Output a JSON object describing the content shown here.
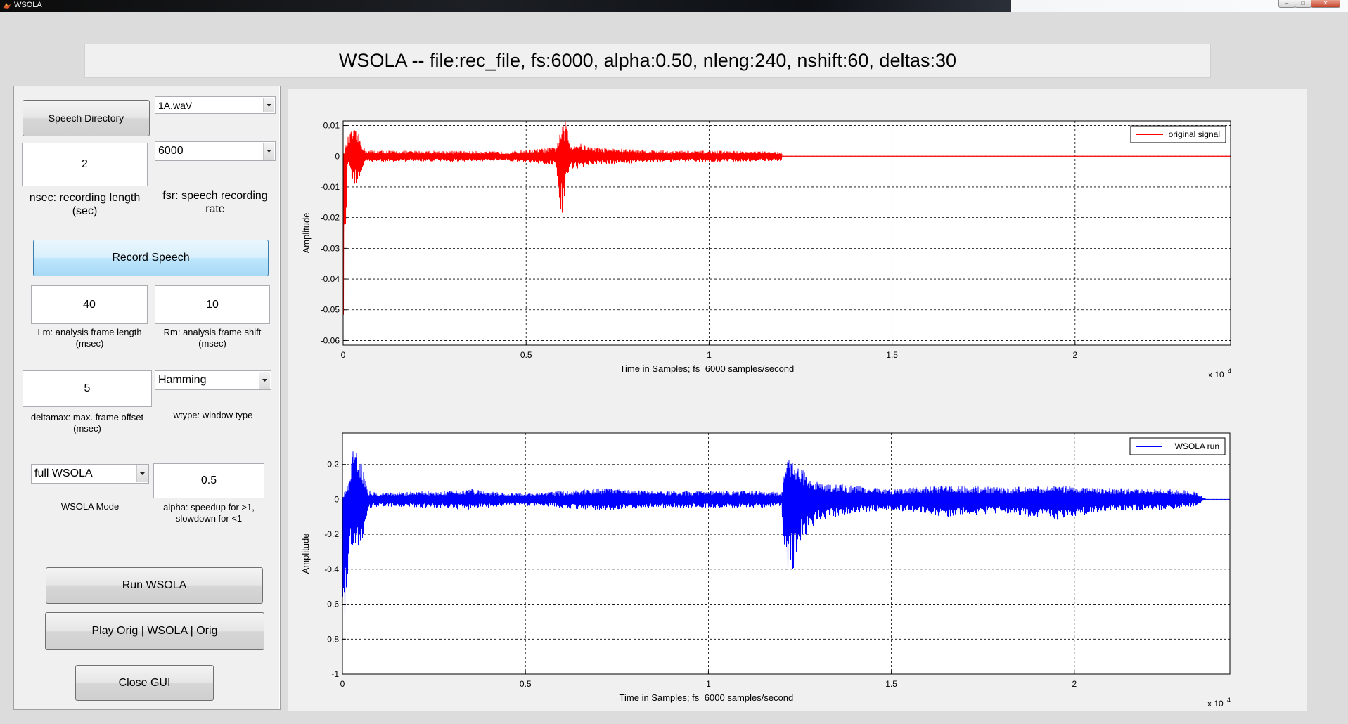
{
  "window": {
    "title": "WSOLA"
  },
  "header": {
    "title": "WSOLA -- file:rec_file, fs:6000, alpha:0.50, nleng:240, nshift:60, deltas:30"
  },
  "controls": {
    "speech_directory_label": "Speech Directory",
    "file_select": "1A.waV",
    "nsec_value": "2",
    "nsec_label": "nsec: recording length (sec)",
    "fsr_select": "6000",
    "fsr_label": "fsr: speech recording rate",
    "record_label": "Record Speech",
    "lm_value": "40",
    "lm_label": "Lm: analysis frame length (msec)",
    "rm_value": "10",
    "rm_label": "Rm: analysis frame shift (msec)",
    "deltamax_value": "5",
    "deltamax_label": "deltamax: max. frame offset (msec)",
    "wtype_select": "Hamming",
    "wtype_label": "wtype: window type",
    "mode_select": "full WSOLA",
    "mode_label": "WSOLA Mode",
    "alpha_value": "0.5",
    "alpha_label": "alpha: speedup for >1, slowdown for <1",
    "run_label": "Run WSOLA",
    "play_label": "Play Orig | WSOLA | Orig",
    "close_label": "Close GUI"
  },
  "icons": {
    "app": "matlab-icon",
    "dropdown": "chevron-down-icon"
  },
  "chart_data": [
    {
      "type": "line",
      "xlabel": "Time in Samples; fs=6000 samples/second",
      "ylabel": "Amplitude",
      "xlim": [
        0,
        24250
      ],
      "ylim": [
        -0.0615,
        0.0115
      ],
      "xticks": [
        0,
        5000,
        10000,
        15000,
        20000
      ],
      "xtick_labels": [
        "0",
        "0.5",
        "1",
        "1.5",
        "2"
      ],
      "x_exponent_label": "x 10",
      "x_exponent_power": "4",
      "yticks": [
        0.01,
        0,
        -0.01,
        -0.02,
        -0.03,
        -0.04,
        -0.05,
        -0.06
      ],
      "ytick_labels": [
        "0.01",
        "0",
        "-0.01",
        "-0.02",
        "-0.03",
        "-0.04",
        "-0.05",
        "-0.06"
      ],
      "grid": true,
      "legend_position": "top-right",
      "series": [
        {
          "name": "original signal",
          "color": "#ff0000",
          "envelope": {
            "x": [
              0,
              120,
              250,
              400,
              600,
              1500,
              3000,
              4500,
              5800,
              6000,
              6100,
              6200,
              6400,
              6800,
              7500,
              9000,
              10500,
              12000
            ],
            "upper": [
              0.0,
              0.006,
              0.009,
              0.008,
              0.002,
              0.0018,
              0.0018,
              0.0015,
              0.003,
              0.01,
              0.012,
              0.004,
              0.0045,
              0.003,
              0.0025,
              0.0018,
              0.0018,
              0.0015
            ],
            "lower": [
              -0.0615,
              -0.0025,
              -0.009,
              -0.0095,
              -0.002,
              -0.0018,
              -0.0018,
              -0.0015,
              -0.003,
              -0.023,
              -0.007,
              -0.004,
              -0.0045,
              -0.003,
              -0.0025,
              -0.0018,
              -0.0018,
              -0.0015
            ]
          }
        }
      ]
    },
    {
      "type": "line",
      "xlabel": "Time in Samples; fs=6000 samples/second",
      "ylabel": "Amplitude",
      "xlim": [
        0,
        24250
      ],
      "ylim": [
        -1.0,
        0.38
      ],
      "xticks": [
        0,
        5000,
        10000,
        15000,
        20000
      ],
      "xtick_labels": [
        "0",
        "0.5",
        "1",
        "1.5",
        "2"
      ],
      "x_exponent_label": "x 10",
      "x_exponent_power": "4",
      "yticks": [
        0.2,
        0,
        -0.2,
        -0.4,
        -0.6,
        -0.8,
        -1
      ],
      "ytick_labels": [
        "0.2",
        "0",
        "-0.2",
        "-0.4",
        "-0.6",
        "-0.8",
        "-1"
      ],
      "grid": true,
      "legend_position": "top-right",
      "series": [
        {
          "name": "WSOLA run",
          "color": "#0000ff",
          "envelope": {
            "x": [
              0,
              200,
              300,
              400,
              550,
              700,
              1000,
              2000,
              3500,
              4500,
              5500,
              7000,
              8500,
              10000,
              11500,
              12000,
              12100,
              12300,
              12500,
              13000,
              13500,
              14000,
              15000,
              16500,
              18000,
              19500,
              21000,
              22500,
              23300,
              23600,
              24250
            ],
            "upper": [
              0.0,
              0.15,
              0.38,
              0.3,
              0.2,
              0.05,
              0.04,
              0.045,
              0.06,
              0.035,
              0.04,
              0.065,
              0.05,
              0.05,
              0.05,
              0.04,
              0.2,
              0.25,
              0.18,
              0.1,
              0.09,
              0.08,
              0.06,
              0.08,
              0.07,
              0.08,
              0.065,
              0.06,
              0.05,
              0.0,
              0.0
            ],
            "lower": [
              -1.0,
              -0.25,
              -0.38,
              -0.33,
              -0.25,
              -0.05,
              -0.04,
              -0.045,
              -0.06,
              -0.035,
              -0.04,
              -0.065,
              -0.05,
              -0.05,
              -0.05,
              -0.04,
              -0.43,
              -0.42,
              -0.25,
              -0.12,
              -0.1,
              -0.08,
              -0.06,
              -0.1,
              -0.08,
              -0.12,
              -0.065,
              -0.06,
              -0.04,
              0.0,
              0.0
            ]
          }
        }
      ]
    }
  ]
}
